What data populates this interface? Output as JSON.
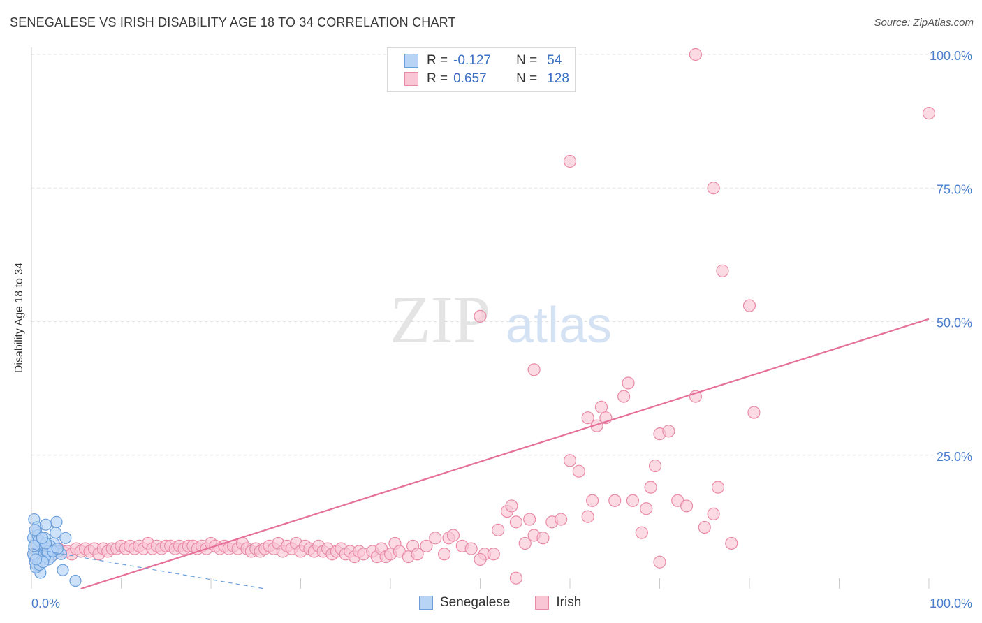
{
  "title": "SENEGALESE VS IRISH DISABILITY AGE 18 TO 34 CORRELATION CHART",
  "source": "Source: ZipAtlas.com",
  "legend": {
    "r_label": "R =",
    "n_label": "N =",
    "rows": [
      {
        "name": "Senegalese",
        "r": "-0.127",
        "n": "54",
        "fill": "#b8d4f5",
        "stroke": "#6a9fdc"
      },
      {
        "name": "Irish",
        "r": "0.657",
        "n": "128",
        "fill": "#f9c6d5",
        "stroke": "#e98aa6"
      }
    ]
  },
  "colors": {
    "senegalese": "#6a9fdc",
    "senegalese_fill": "#b8d4f5",
    "irish": "#e98aa6",
    "irish_fill": "#f9c6d5",
    "irish_line": "#e5709a",
    "axis_text": "#4a7ecb",
    "grid": "#e2e2e2"
  },
  "watermark": {
    "zip": "ZIP",
    "atlas": "atlas"
  },
  "chart_data": {
    "type": "scatter",
    "title": "SENEGALESE VS IRISH DISABILITY AGE 18 TO 34 CORRELATION CHART",
    "xlabel": "",
    "ylabel": "Disability Age 18 to 34",
    "xlim": [
      0,
      100
    ],
    "ylim": [
      0,
      100
    ],
    "x_tick_labels": [
      "0.0%",
      "100.0%"
    ],
    "y_ticks": [
      25,
      50,
      75,
      100
    ],
    "y_tick_labels": [
      "25.0%",
      "50.0%",
      "75.0%",
      "100.0%"
    ],
    "grid": true,
    "series": [
      {
        "name": "Senegalese",
        "points": [
          [
            0.3,
            13.0
          ],
          [
            0.5,
            10.5
          ],
          [
            0.6,
            11.5
          ],
          [
            0.8,
            9.0
          ],
          [
            0.4,
            8.5
          ],
          [
            0.6,
            8.0
          ],
          [
            0.9,
            7.5
          ],
          [
            0.5,
            7.0
          ],
          [
            0.7,
            6.5
          ],
          [
            0.3,
            6.0
          ],
          [
            1.0,
            6.5
          ],
          [
            1.2,
            7.0
          ],
          [
            0.8,
            5.5
          ],
          [
            0.4,
            5.0
          ],
          [
            1.1,
            5.5
          ],
          [
            0.6,
            4.5
          ],
          [
            0.9,
            6.0
          ],
          [
            1.3,
            8.0
          ],
          [
            1.5,
            9.5
          ],
          [
            1.6,
            12.0
          ],
          [
            2.0,
            7.5
          ],
          [
            2.2,
            6.0
          ],
          [
            2.5,
            8.5
          ],
          [
            2.7,
            10.5
          ],
          [
            2.8,
            12.5
          ],
          [
            3.0,
            7.0
          ],
          [
            3.3,
            6.5
          ],
          [
            3.8,
            9.5
          ],
          [
            1.0,
            3.0
          ],
          [
            0.5,
            4.0
          ],
          [
            0.2,
            9.5
          ],
          [
            1.4,
            6.5
          ],
          [
            1.7,
            7.5
          ],
          [
            1.9,
            5.5
          ],
          [
            2.1,
            8.0
          ],
          [
            0.3,
            7.5
          ],
          [
            0.7,
            10.0
          ],
          [
            1.1,
            8.5
          ],
          [
            0.9,
            4.5
          ],
          [
            1.5,
            6.0
          ],
          [
            0.4,
            11.0
          ],
          [
            0.6,
            6.0
          ],
          [
            1.8,
            7.0
          ],
          [
            0.2,
            6.5
          ],
          [
            1.3,
            5.0
          ],
          [
            2.4,
            7.0
          ],
          [
            0.8,
            9.0
          ],
          [
            1.6,
            8.5
          ],
          [
            0.5,
            5.5
          ],
          [
            3.5,
            3.5
          ],
          [
            4.9,
            1.5
          ],
          [
            1.2,
            9.5
          ],
          [
            0.3,
            8.0
          ],
          [
            2.9,
            7.5
          ]
        ]
      },
      {
        "name": "Irish",
        "points": [
          [
            1.5,
            7.0
          ],
          [
            2.0,
            7.5
          ],
          [
            2.5,
            6.5
          ],
          [
            3.0,
            7.5
          ],
          [
            3.5,
            7.0
          ],
          [
            4.0,
            7.0
          ],
          [
            4.5,
            6.5
          ],
          [
            5.0,
            7.5
          ],
          [
            5.5,
            7.0
          ],
          [
            6.0,
            7.5
          ],
          [
            6.5,
            7.0
          ],
          [
            7.0,
            7.5
          ],
          [
            7.5,
            6.5
          ],
          [
            8.0,
            7.5
          ],
          [
            8.5,
            7.0
          ],
          [
            9.0,
            7.5
          ],
          [
            9.5,
            7.5
          ],
          [
            10.0,
            8.0
          ],
          [
            10.5,
            7.5
          ],
          [
            11.0,
            8.0
          ],
          [
            11.5,
            7.5
          ],
          [
            12.0,
            8.0
          ],
          [
            12.5,
            7.5
          ],
          [
            13.0,
            8.5
          ],
          [
            13.5,
            7.5
          ],
          [
            14.0,
            8.0
          ],
          [
            14.5,
            7.5
          ],
          [
            15.0,
            8.0
          ],
          [
            15.5,
            8.0
          ],
          [
            16.0,
            7.5
          ],
          [
            16.5,
            8.0
          ],
          [
            17.0,
            7.5
          ],
          [
            17.5,
            8.0
          ],
          [
            18.0,
            8.0
          ],
          [
            18.5,
            7.5
          ],
          [
            19.0,
            8.0
          ],
          [
            19.5,
            7.5
          ],
          [
            20.0,
            8.5
          ],
          [
            20.5,
            8.0
          ],
          [
            21.0,
            7.5
          ],
          [
            21.5,
            8.0
          ],
          [
            22.0,
            7.5
          ],
          [
            22.5,
            8.0
          ],
          [
            23.0,
            7.5
          ],
          [
            23.5,
            8.5
          ],
          [
            24.0,
            7.5
          ],
          [
            24.5,
            7.0
          ],
          [
            25.0,
            7.5
          ],
          [
            25.5,
            7.0
          ],
          [
            26.0,
            7.5
          ],
          [
            26.5,
            8.0
          ],
          [
            27.0,
            7.5
          ],
          [
            27.5,
            8.5
          ],
          [
            28.0,
            7.0
          ],
          [
            28.5,
            8.0
          ],
          [
            29.0,
            7.5
          ],
          [
            29.5,
            8.5
          ],
          [
            30.0,
            7.0
          ],
          [
            30.5,
            8.0
          ],
          [
            31.0,
            7.5
          ],
          [
            31.5,
            7.0
          ],
          [
            32.0,
            8.0
          ],
          [
            32.5,
            7.0
          ],
          [
            33.0,
            7.5
          ],
          [
            33.5,
            6.5
          ],
          [
            34.0,
            7.0
          ],
          [
            34.5,
            7.5
          ],
          [
            35.0,
            6.5
          ],
          [
            35.5,
            7.0
          ],
          [
            36.0,
            6.0
          ],
          [
            36.5,
            7.0
          ],
          [
            37.0,
            6.5
          ],
          [
            38.0,
            7.0
          ],
          [
            38.5,
            6.0
          ],
          [
            39.0,
            7.5
          ],
          [
            39.5,
            6.0
          ],
          [
            40.0,
            6.5
          ],
          [
            40.5,
            8.5
          ],
          [
            41.0,
            7.0
          ],
          [
            42.0,
            6.0
          ],
          [
            42.5,
            8.0
          ],
          [
            43.0,
            6.5
          ],
          [
            44.0,
            8.0
          ],
          [
            45.0,
            9.5
          ],
          [
            46.0,
            6.5
          ],
          [
            46.5,
            9.5
          ],
          [
            47.0,
            10.0
          ],
          [
            48.0,
            8.0
          ],
          [
            49.0,
            7.5
          ],
          [
            50.5,
            6.5
          ],
          [
            51.5,
            6.5
          ],
          [
            52.0,
            11.0
          ],
          [
            53.0,
            14.5
          ],
          [
            53.5,
            15.5
          ],
          [
            54.0,
            12.5
          ],
          [
            55.0,
            8.5
          ],
          [
            55.5,
            13.0
          ],
          [
            56.0,
            10.0
          ],
          [
            57.0,
            9.5
          ],
          [
            58.0,
            12.5
          ],
          [
            59.0,
            13.0
          ],
          [
            60.0,
            24.0
          ],
          [
            61.0,
            22.0
          ],
          [
            62.0,
            13.5
          ],
          [
            62.5,
            16.5
          ],
          [
            62.0,
            32.0
          ],
          [
            63.0,
            30.5
          ],
          [
            63.5,
            34.0
          ],
          [
            64.0,
            32.0
          ],
          [
            65.0,
            16.5
          ],
          [
            66.0,
            36.0
          ],
          [
            66.5,
            38.5
          ],
          [
            67.0,
            16.5
          ],
          [
            68.0,
            10.5
          ],
          [
            68.5,
            15.0
          ],
          [
            69.0,
            19.0
          ],
          [
            69.5,
            23.0
          ],
          [
            70.0,
            29.0
          ],
          [
            71.0,
            29.5
          ],
          [
            72.0,
            16.5
          ],
          [
            73.0,
            15.5
          ],
          [
            74.0,
            36.0
          ],
          [
            75.0,
            11.5
          ],
          [
            76.0,
            14.0
          ],
          [
            76.5,
            19.0
          ],
          [
            77.0,
            59.5
          ],
          [
            80.0,
            53.0
          ],
          [
            80.5,
            33.0
          ]
        ]
      }
    ],
    "extra_irish_points": [
      [
        74.0,
        100.0
      ],
      [
        60.0,
        80.0
      ],
      [
        76.0,
        75.0
      ],
      [
        56.0,
        41.0
      ],
      [
        50.0,
        51.0
      ],
      [
        100.0,
        89.0
      ],
      [
        50.0,
        5.5
      ],
      [
        54.0,
        2.0
      ],
      [
        78.0,
        8.5
      ],
      [
        70.0,
        5.0
      ]
    ],
    "trend_lines": [
      {
        "series": "Irish",
        "x": [
          5.5,
          100
        ],
        "y": [
          0.0,
          50.5
        ],
        "style": "solid"
      },
      {
        "series": "Senegalese",
        "x": [
          0,
          26
        ],
        "y": [
          7.5,
          0.0
        ],
        "style": "dashed"
      }
    ]
  }
}
